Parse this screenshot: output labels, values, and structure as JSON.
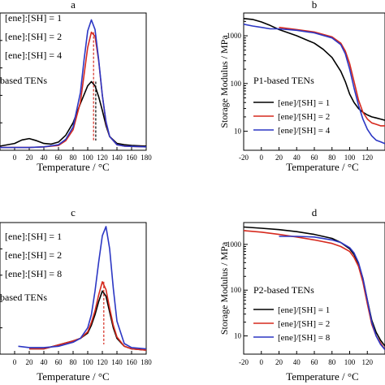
{
  "chart_data": [
    {
      "panel_label": "a",
      "type": "line",
      "xlabel": "Temperature / °C",
      "ylabel": "",
      "xlim": [
        -20,
        180
      ],
      "ylim": [
        0,
        1
      ],
      "x_ticks": [
        0,
        20,
        40,
        60,
        80,
        100,
        120,
        140,
        160,
        180
      ],
      "y_scale": "linear",
      "legend_position": "top-left",
      "series_title": "based TENs",
      "series": [
        {
          "name": "[ene]:[SH] = 1",
          "color": "#000000",
          "x": [
            -20,
            0,
            10,
            20,
            30,
            40,
            50,
            60,
            70,
            80,
            90,
            100,
            105,
            110,
            115,
            120,
            125,
            130,
            140,
            150,
            160,
            180
          ],
          "y": [
            0.03,
            0.05,
            0.075,
            0.085,
            0.07,
            0.05,
            0.045,
            0.06,
            0.11,
            0.2,
            0.34,
            0.47,
            0.5,
            0.47,
            0.39,
            0.29,
            0.18,
            0.1,
            0.05,
            0.04,
            0.035,
            0.03
          ]
        },
        {
          "name": "[ene]:[SH] = 2",
          "color": "#d62a1f",
          "x": [
            -20,
            20,
            40,
            60,
            70,
            80,
            90,
            95,
            100,
            105,
            110,
            115,
            120,
            125,
            130,
            140,
            150,
            180
          ],
          "y": [
            0.02,
            0.02,
            0.025,
            0.035,
            0.07,
            0.15,
            0.35,
            0.55,
            0.75,
            0.86,
            0.83,
            0.65,
            0.4,
            0.2,
            0.1,
            0.04,
            0.03,
            0.025
          ]
        },
        {
          "name": "[ene]:[SH] = 4",
          "color": "#2c37c4",
          "x": [
            -20,
            20,
            40,
            60,
            70,
            80,
            90,
            95,
            100,
            105,
            110,
            115,
            120,
            125,
            130,
            140,
            150,
            180
          ],
          "y": [
            0.02,
            0.02,
            0.025,
            0.04,
            0.08,
            0.17,
            0.42,
            0.66,
            0.87,
            0.95,
            0.88,
            0.66,
            0.4,
            0.21,
            0.1,
            0.04,
            0.03,
            0.025
          ]
        }
      ],
      "markers": [
        {
          "x": 108,
          "y_top": 0.86,
          "color": "#d62a1f"
        },
        {
          "x": 111,
          "y_top": 0.5,
          "color": "#000000"
        }
      ]
    },
    {
      "panel_label": "b",
      "type": "line",
      "xlabel": "Temperature / °C",
      "ylabel": "Storage Modulus / MPa",
      "xlim": [
        -20,
        140
      ],
      "ylim": [
        4,
        3000
      ],
      "x_ticks": [
        -20,
        0,
        20,
        40,
        60,
        80,
        100,
        120
      ],
      "y_ticks": [
        10,
        100,
        1000
      ],
      "y_scale": "log",
      "legend_position": "bottom-left",
      "series_title": "P1-based TENs",
      "series": [
        {
          "name": "[ene]/[SH] = 1",
          "color": "#000000",
          "x": [
            -20,
            -10,
            0,
            10,
            20,
            40,
            60,
            70,
            80,
            90,
            95,
            100,
            105,
            110,
            115,
            120,
            125,
            130,
            135,
            140
          ],
          "y": [
            2300,
            2200,
            1950,
            1650,
            1350,
            1000,
            700,
            520,
            350,
            180,
            110,
            60,
            40,
            30,
            25,
            22,
            20,
            19,
            18,
            17
          ]
        },
        {
          "name": "[ene]/[SH] = 2",
          "color": "#d62a1f",
          "x": [
            20,
            40,
            60,
            80,
            90,
            95,
            100,
            105,
            110,
            115,
            120,
            125,
            130,
            135,
            140
          ],
          "y": [
            1500,
            1350,
            1200,
            950,
            700,
            480,
            260,
            110,
            45,
            25,
            18,
            15,
            14,
            13,
            13
          ]
        },
        {
          "name": "[ene]/[SH] = 4",
          "color": "#2c37c4",
          "x": [
            -20,
            -10,
            0,
            10,
            20,
            40,
            60,
            80,
            90,
            95,
            100,
            105,
            110,
            115,
            120,
            125,
            130,
            135,
            140
          ],
          "y": [
            1750,
            1600,
            1500,
            1400,
            1400,
            1300,
            1150,
            900,
            650,
            420,
            200,
            80,
            35,
            18,
            11,
            8,
            6.5,
            6,
            5.5
          ]
        }
      ]
    },
    {
      "panel_label": "c",
      "type": "line",
      "xlabel": "Temperature / °C",
      "ylabel": "",
      "xlim": [
        -20,
        180
      ],
      "ylim": [
        0,
        1
      ],
      "x_ticks": [
        0,
        20,
        40,
        60,
        80,
        100,
        120,
        140,
        160,
        180
      ],
      "y_scale": "linear",
      "legend_position": "top-left",
      "series_title": "based TENs",
      "series": [
        {
          "name": "[ene]:[SH] = 1",
          "color": "#000000",
          "x": [
            20,
            40,
            60,
            80,
            90,
            100,
            105,
            110,
            115,
            120,
            125,
            130,
            135,
            140,
            150,
            160,
            180
          ],
          "y": [
            0.04,
            0.04,
            0.07,
            0.1,
            0.12,
            0.16,
            0.22,
            0.3,
            0.4,
            0.48,
            0.44,
            0.32,
            0.2,
            0.12,
            0.06,
            0.04,
            0.03
          ]
        },
        {
          "name": "[ene]:[SH] = 2",
          "color": "#d62a1f",
          "x": [
            20,
            40,
            60,
            80,
            90,
            100,
            105,
            110,
            115,
            120,
            125,
            130,
            135,
            140,
            150,
            160,
            180
          ],
          "y": [
            0.04,
            0.04,
            0.07,
            0.1,
            0.12,
            0.17,
            0.24,
            0.33,
            0.45,
            0.55,
            0.49,
            0.35,
            0.22,
            0.13,
            0.06,
            0.04,
            0.03
          ]
        },
        {
          "name": "[ene]:[SH] = 8",
          "color": "#2c37c4",
          "x": [
            5,
            20,
            40,
            60,
            80,
            90,
            100,
            105,
            110,
            115,
            120,
            125,
            130,
            135,
            140,
            150,
            160,
            180
          ],
          "y": [
            0.06,
            0.05,
            0.05,
            0.06,
            0.09,
            0.12,
            0.2,
            0.3,
            0.48,
            0.7,
            0.9,
            0.97,
            0.8,
            0.5,
            0.25,
            0.08,
            0.05,
            0.04
          ]
        }
      ],
      "markers": [
        {
          "x": 122,
          "y_top": 0.55,
          "color": "#d62a1f"
        }
      ]
    },
    {
      "panel_label": "d",
      "type": "line",
      "xlabel": "Temperature / °C",
      "ylabel": "Storage Modulus / MPa",
      "xlim": [
        -20,
        140
      ],
      "ylim": [
        4,
        3000
      ],
      "x_ticks": [
        -20,
        0,
        20,
        40,
        60,
        80,
        100,
        120
      ],
      "y_ticks": [
        10,
        100,
        1000
      ],
      "y_scale": "log",
      "legend_position": "bottom-left",
      "series_title": "P2-based TENs",
      "series": [
        {
          "name": "[ene]/[SH] = 1",
          "color": "#000000",
          "x": [
            -20,
            0,
            20,
            40,
            60,
            80,
            90,
            100,
            105,
            110,
            115,
            120,
            125,
            130,
            135,
            140
          ],
          "y": [
            2400,
            2250,
            2100,
            1900,
            1650,
            1350,
            1100,
            800,
            600,
            380,
            180,
            60,
            22,
            12,
            8,
            6
          ]
        },
        {
          "name": "[ene]/[SH] = 2",
          "color": "#d62a1f",
          "x": [
            -20,
            0,
            20,
            40,
            60,
            80,
            90,
            100,
            105,
            110,
            115,
            120,
            125,
            130,
            135,
            140
          ],
          "y": [
            2000,
            1850,
            1650,
            1450,
            1250,
            1050,
            900,
            700,
            520,
            330,
            150,
            50,
            18,
            10,
            7,
            5
          ]
        },
        {
          "name": "[ene]/[SH] = 8",
          "color": "#2c37c4",
          "x": [
            20,
            40,
            60,
            80,
            90,
            100,
            105,
            110,
            115,
            120,
            125,
            130,
            135,
            140
          ],
          "y": [
            1500,
            1500,
            1450,
            1250,
            1100,
            850,
            650,
            400,
            180,
            60,
            20,
            10,
            6.5,
            5
          ]
        }
      ]
    }
  ]
}
